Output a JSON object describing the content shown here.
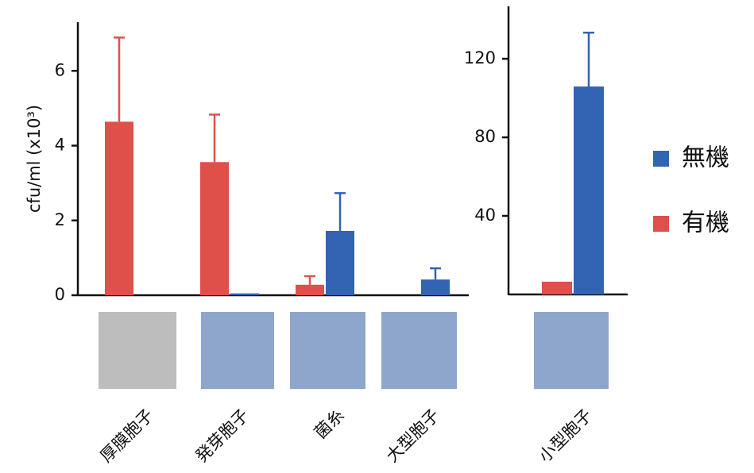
{
  "chart_data": [
    {
      "type": "bar",
      "y_label": "cfu/ml (x10³)",
      "categories": [
        "厚膜胞子",
        "発芽胞子",
        "菌糸",
        "大型胞子"
      ],
      "series": [
        {
          "name": "有機",
          "color": "#e0504a",
          "values": [
            4.64,
            3.56,
            0.28,
            null
          ],
          "errors": [
            2.25,
            1.27,
            0.23,
            null
          ]
        },
        {
          "name": "無機",
          "color": "#3363b3",
          "values": [
            null,
            0.05,
            1.72,
            0.42
          ],
          "errors": [
            null,
            null,
            1.01,
            0.3
          ]
        }
      ],
      "ylim": [
        0,
        7.3
      ],
      "yticks": [
        0,
        2,
        4,
        6
      ]
    },
    {
      "type": "bar",
      "categories": [
        "小型胞子"
      ],
      "series": [
        {
          "name": "有機",
          "color": "#e0504a",
          "values": [
            6.5
          ],
          "errors": [
            null
          ]
        },
        {
          "name": "無機",
          "color": "#3363b3",
          "values": [
            105.9
          ],
          "errors": [
            27.4
          ]
        }
      ],
      "ylim": [
        0,
        146.7
      ],
      "yticks": [
        40,
        80,
        120
      ],
      "legend": "right"
    }
  ]
}
